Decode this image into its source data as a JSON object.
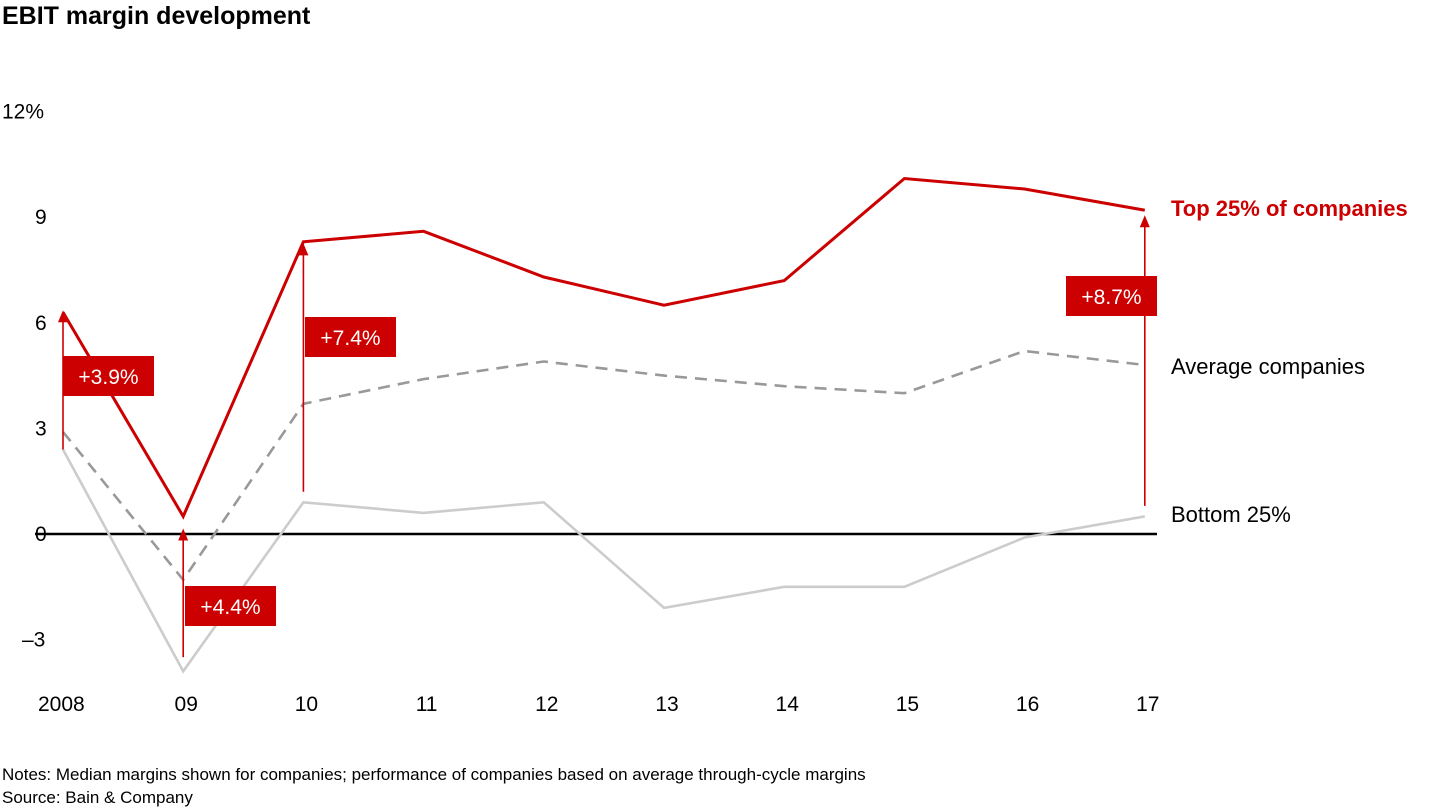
{
  "colors": {
    "top": "#cc0000",
    "average": "#999999",
    "bottom": "#cccccc",
    "zero_line": "#000000",
    "label_text": "#ffffff"
  },
  "chart_data": {
    "type": "line",
    "title": "EBIT margin development",
    "categories": [
      "2008",
      "09",
      "10",
      "11",
      "12",
      "13",
      "14",
      "15",
      "16",
      "17"
    ],
    "y_ticks": [
      "12%",
      "9",
      "6",
      "3",
      "0",
      "–3"
    ],
    "ylim": [
      -4,
      12
    ],
    "grid": false,
    "series": [
      {
        "name": "Top 25% of companies",
        "style": "solid",
        "color": "#cc0000",
        "values": [
          6.3,
          0.5,
          8.3,
          8.6,
          7.3,
          6.5,
          7.2,
          10.1,
          9.8,
          9.2
        ]
      },
      {
        "name": "Average companies",
        "style": "dashed",
        "color": "#999999",
        "values": [
          2.9,
          -1.3,
          3.7,
          4.4,
          4.9,
          4.5,
          4.2,
          4.0,
          5.2,
          4.8
        ]
      },
      {
        "name": "Bottom 25%",
        "style": "solid",
        "color": "#cccccc",
        "values": [
          2.4,
          -3.9,
          0.9,
          0.6,
          0.9,
          -2.1,
          -1.5,
          -1.5,
          -0.1,
          0.5
        ]
      }
    ],
    "annotations": [
      {
        "label": "+3.9%",
        "category_index": 0,
        "from": 2.4,
        "to": 6.3
      },
      {
        "label": "+4.4%",
        "category_index": 1,
        "from": -3.5,
        "to": 0.1
      },
      {
        "label": "+7.4%",
        "category_index": 2,
        "from": 1.2,
        "to": 8.2
      },
      {
        "label": "+8.7%",
        "category_index": 9,
        "from": 0.8,
        "to": 9.0
      }
    ]
  },
  "footer": {
    "notes": "Notes: Median margins shown for companies; performance of companies based on average through-cycle margins",
    "source": "Source: Bain & Company"
  }
}
